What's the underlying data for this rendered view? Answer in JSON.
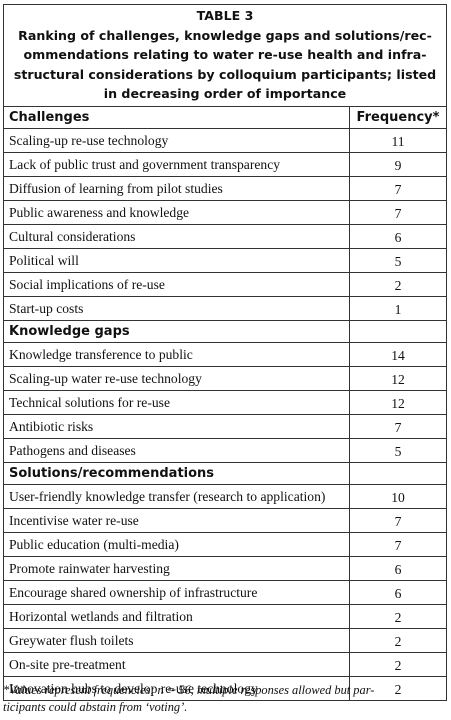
{
  "title": "TABLE 3",
  "caption_lines": [
    "Ranking of challenges, knowledge gaps and solutions/rec-",
    "ommendations relating to water re-use health and infra-",
    "structural considerations by colloquium participants; listed",
    "in decreasing order of importance"
  ],
  "table": {
    "frequency_header": "Frequency*",
    "sections": [
      {
        "title": "Challenges",
        "rows": [
          [
            "Scaling-up re-use technology",
            "11"
          ],
          [
            "Lack of public trust and government transparency",
            "9"
          ],
          [
            "Diffusion of learning from pilot studies",
            "7"
          ],
          [
            "Public awareness and knowledge",
            "7"
          ],
          [
            "Cultural considerations",
            "6"
          ],
          [
            "Political will",
            "5"
          ],
          [
            "Social implications of re-use",
            "2"
          ],
          [
            "Start-up costs",
            "1"
          ]
        ]
      },
      {
        "title": "Knowledge gaps",
        "rows": [
          [
            "Knowledge transference to public",
            "14"
          ],
          [
            "Scaling-up water re-use technology",
            "12"
          ],
          [
            "Technical solutions for re-use",
            "12"
          ],
          [
            "Antibiotic risks",
            "7"
          ],
          [
            "Pathogens and diseases",
            "5"
          ]
        ]
      },
      {
        "title": "Solutions/recommendations",
        "rows": [
          [
            "User-friendly knowledge transfer (research to application)",
            "10"
          ],
          [
            "Incentivise water re-use",
            "7"
          ],
          [
            "Public education (multi-media)",
            "7"
          ],
          [
            "Promote rainwater harvesting",
            "6"
          ],
          [
            "Encourage shared ownership of infrastructure",
            "6"
          ],
          [
            "Horizontal wetlands and filtration",
            "2"
          ],
          [
            "Greywater flush toilets",
            "2"
          ],
          [
            "On-site pre-treatment",
            "2"
          ],
          [
            "Innovation hubs to develop re-use technology",
            "2"
          ]
        ]
      }
    ]
  },
  "footnote_lines": [
    "*Values represent frequencies; n = 56, multiple responses allowed but par-",
    "ticipants could abstain from ‘voting’."
  ]
}
